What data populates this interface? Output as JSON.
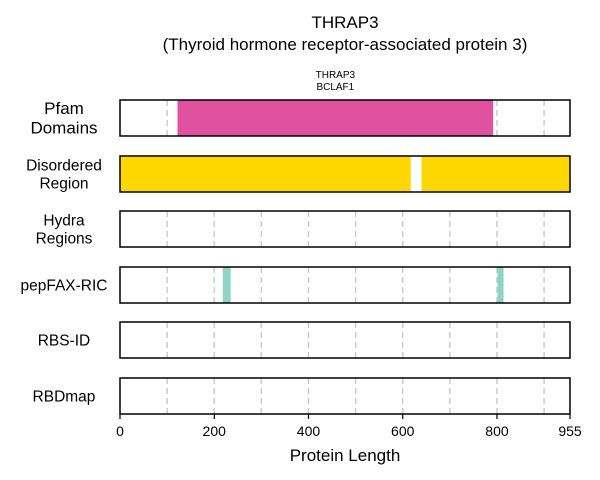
{
  "chart_data": {
    "type": "bar",
    "title": "THRAP3",
    "subtitle": "(Thyroid hormone receptor-associated protein 3)",
    "xlabel": "Protein Length",
    "xlim": [
      0,
      955
    ],
    "xticks": [
      0,
      200,
      400,
      600,
      800,
      955
    ],
    "gridlines": [
      100,
      200,
      300,
      400,
      500,
      600,
      700,
      800,
      900
    ],
    "domain_annotation": [
      "THRAP3",
      "BCLAF1"
    ],
    "tracks": [
      {
        "label": [
          "Pfam",
          "Domains"
        ],
        "segments": [
          {
            "start": 122,
            "end": 792,
            "color": "#e052a0"
          }
        ]
      },
      {
        "label": [
          "Disordered",
          "Region"
        ],
        "segments": [
          {
            "start": 0,
            "end": 617,
            "color": "#ffd700"
          },
          {
            "start": 640,
            "end": 955,
            "color": "#ffd700"
          }
        ]
      },
      {
        "label": [
          "Hydra",
          "Regions"
        ],
        "segments": []
      },
      {
        "label": [
          "pepFAX-RIC"
        ],
        "segments": [
          {
            "start": 218,
            "end": 235,
            "color": "#8fd4c4"
          },
          {
            "start": 801,
            "end": 814,
            "color": "#8fd4c4"
          }
        ]
      },
      {
        "label": [
          "RBS-ID"
        ],
        "segments": []
      },
      {
        "label": [
          "RBDmap"
        ],
        "segments": []
      }
    ]
  }
}
